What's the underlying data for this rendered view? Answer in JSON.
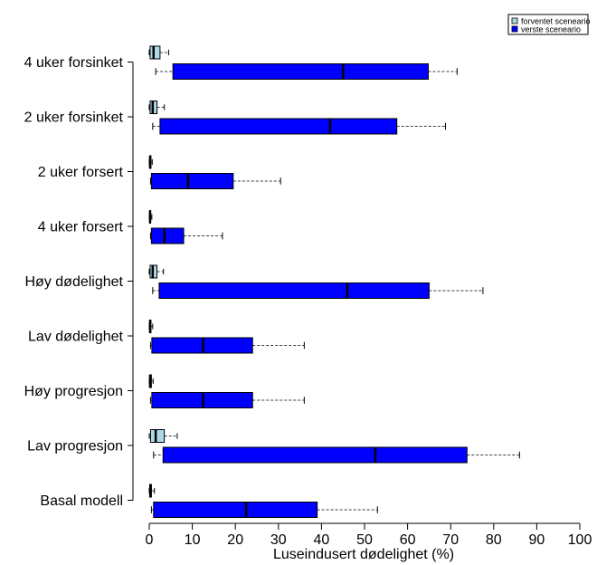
{
  "chart_data": {
    "type": "boxplot",
    "orientation": "horizontal",
    "xlabel": "Luseindusert dødelighet (%)",
    "xlim": [
      0,
      100
    ],
    "xticks": [
      0,
      10,
      20,
      30,
      40,
      50,
      60,
      70,
      80,
      90,
      100
    ],
    "categories": [
      "4 uker forsinket",
      "2 uker forsinket",
      "2 uker forsert",
      "4 uker forsert",
      "Høy dødelighet",
      "Lav dødelighet",
      "Høy progresjon",
      "Lav progresjon",
      "Basal modell"
    ],
    "legend": {
      "position": "top-right",
      "entries": [
        {
          "name": "forventet sceneario",
          "color": "#add8e6"
        },
        {
          "name": "verste sceneario",
          "color": "#0000ff"
        }
      ]
    },
    "series": [
      {
        "name": "forventet sceneario",
        "color": "#add8e6",
        "boxes": [
          {
            "whisker_low": 0,
            "q1": 0.2,
            "median": 1.0,
            "q3": 2.5,
            "whisker_high": 4.5
          },
          {
            "whisker_low": 0,
            "q1": 0.2,
            "median": 0.8,
            "q3": 1.8,
            "whisker_high": 3.5
          },
          {
            "whisker_low": 0,
            "q1": 0.1,
            "median": 0.2,
            "q3": 0.4,
            "whisker_high": 0.7
          },
          {
            "whisker_low": 0,
            "q1": 0.1,
            "median": 0.2,
            "q3": 0.3,
            "whisker_high": 0.6
          },
          {
            "whisker_low": 0,
            "q1": 0.2,
            "median": 0.8,
            "q3": 1.8,
            "whisker_high": 3.3
          },
          {
            "whisker_low": 0,
            "q1": 0.1,
            "median": 0.2,
            "q3": 0.4,
            "whisker_high": 0.8
          },
          {
            "whisker_low": 0,
            "q1": 0.1,
            "median": 0.2,
            "q3": 0.5,
            "whisker_high": 0.9
          },
          {
            "whisker_low": 0,
            "q1": 0.3,
            "median": 1.5,
            "q3": 3.5,
            "whisker_high": 6.5
          },
          {
            "whisker_low": 0,
            "q1": 0.1,
            "median": 0.3,
            "q3": 0.5,
            "whisker_high": 1.2
          }
        ]
      },
      {
        "name": "verste sceneario",
        "color": "#0000ff",
        "boxes": [
          {
            "whisker_low": 1.5,
            "q1": 5.5,
            "median": 45.0,
            "q3": 64.8,
            "whisker_high": 71.5
          },
          {
            "whisker_low": 0.8,
            "q1": 2.5,
            "median": 42.0,
            "q3": 57.5,
            "whisker_high": 68.8
          },
          {
            "whisker_low": 0.3,
            "q1": 0.5,
            "median": 9.0,
            "q3": 19.5,
            "whisker_high": 30.5
          },
          {
            "whisker_low": 0.3,
            "q1": 0.5,
            "median": 3.5,
            "q3": 8.0,
            "whisker_high": 17.0
          },
          {
            "whisker_low": 0.8,
            "q1": 2.3,
            "median": 46.0,
            "q3": 65.0,
            "whisker_high": 77.5
          },
          {
            "whisker_low": 0.3,
            "q1": 0.6,
            "median": 12.5,
            "q3": 24.0,
            "whisker_high": 36.0
          },
          {
            "whisker_low": 0.3,
            "q1": 0.6,
            "median": 12.5,
            "q3": 24.0,
            "whisker_high": 36.0
          },
          {
            "whisker_low": 1.0,
            "q1": 3.2,
            "median": 52.5,
            "q3": 73.8,
            "whisker_high": 86.0
          },
          {
            "whisker_low": 0.5,
            "q1": 1.0,
            "median": 22.5,
            "q3": 39.0,
            "whisker_high": 53.0
          }
        ]
      }
    ]
  }
}
